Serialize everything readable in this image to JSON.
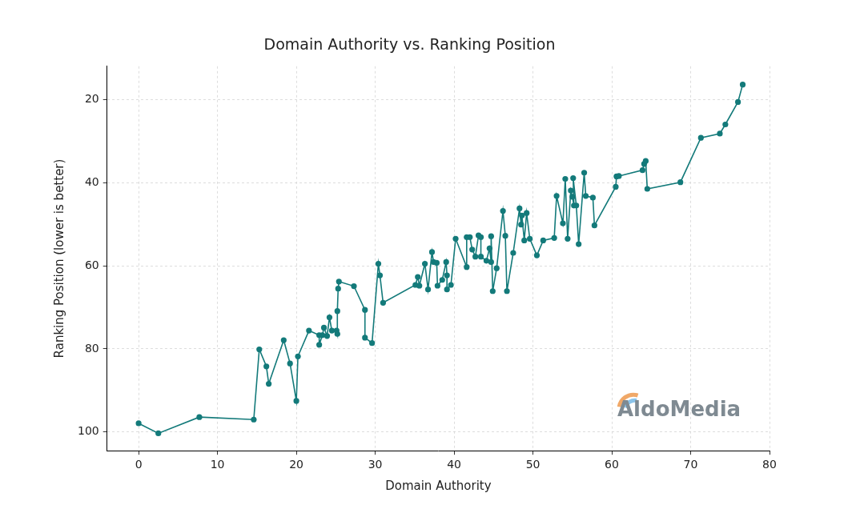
{
  "chart_data": {
    "type": "line",
    "title": "Domain Authority vs. Ranking Position",
    "x_label": "Domain Authority",
    "y_label": "Ranking Position (lower is better)",
    "annotation": "AldoMedia",
    "color": "#137a7a",
    "marker": "circle",
    "line_style": "solid",
    "grid": true,
    "xlim": [
      -4,
      80
    ],
    "xticks": [
      0,
      10,
      20,
      30,
      40,
      50,
      60,
      70,
      80
    ],
    "ylim": [
      104.5,
      12
    ],
    "yticks": [
      20,
      40,
      60,
      80,
      100
    ],
    "x": [
      0,
      2.5,
      7.7,
      14.6,
      15.3,
      16.2,
      16.5,
      18.4,
      19.2,
      20.0,
      20.2,
      21.6,
      22.9,
      22.9,
      23.3,
      23.5,
      23.9,
      24.2,
      24.5,
      25.1,
      25.2,
      25.2,
      25.3,
      25.4,
      27.3,
      28.7,
      28.7,
      29.6,
      30.4,
      30.6,
      31.0,
      35.1,
      35.4,
      35.6,
      36.3,
      36.7,
      37.2,
      37.4,
      37.8,
      37.9,
      38.5,
      39.0,
      39.1,
      39.1,
      39.6,
      40.2,
      41.6,
      41.6,
      42.0,
      42.3,
      42.7,
      43.1,
      43.4,
      43.4,
      44.1,
      44.5,
      44.7,
      44.7,
      44.9,
      45.4,
      46.2,
      46.5,
      46.7,
      47.5,
      48.3,
      48.5,
      48.6,
      48.9,
      49.2,
      49.6,
      50.5,
      51.3,
      52.7,
      53.0,
      53.8,
      54.1,
      54.4,
      54.8,
      55.0,
      55.2,
      55.1,
      55.5,
      55.8,
      56.5,
      56.7,
      57.6,
      57.8,
      60.5,
      60.6,
      60.9,
      63.9,
      64.1,
      64.3,
      64.5,
      68.7,
      71.3,
      73.7,
      74.4,
      76.0,
      76.6
    ],
    "values": [
      97.9,
      100.3,
      96.4,
      97.0,
      80.1,
      84.2,
      88.4,
      77.9,
      83.5,
      92.5,
      81.8,
      75.6,
      76.7,
      79.0,
      76.7,
      74.9,
      76.9,
      72.4,
      75.6,
      75.6,
      76.4,
      70.9,
      65.5,
      63.8,
      64.9,
      70.6,
      77.3,
      78.6,
      59.5,
      62.3,
      68.9,
      64.6,
      62.7,
      64.8,
      59.5,
      65.7,
      56.7,
      59.1,
      59.3,
      64.8,
      63.4,
      59.1,
      62.3,
      65.7,
      64.6,
      53.5,
      60.3,
      53.1,
      53.1,
      56.1,
      57.8,
      52.7,
      53.1,
      57.8,
      58.8,
      55.8,
      59.1,
      52.9,
      66.1,
      60.6,
      46.8,
      52.8,
      66.1,
      56.9,
      46.2,
      50.1,
      47.9,
      53.9,
      47.3,
      53.5,
      57.5,
      53.9,
      53.3,
      43.2,
      49.8,
      39.1,
      53.5,
      41.9,
      43.4,
      45.5,
      38.9,
      45.5,
      54.8,
      37.6,
      43.2,
      43.6,
      50.3,
      41.0,
      38.5,
      38.4,
      37.0,
      35.5,
      34.8,
      41.5,
      39.9,
      29.2,
      28.2,
      26.0,
      20.6,
      16.4
    ]
  }
}
